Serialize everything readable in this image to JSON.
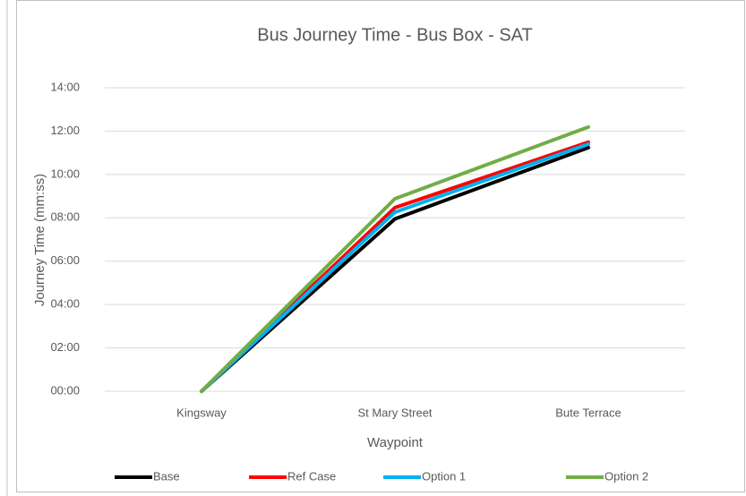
{
  "chart_data": {
    "type": "line",
    "title": "Bus Journey Time - Bus Box - SAT",
    "xlabel": "Waypoint",
    "ylabel": "Journey Time (mm:ss)",
    "categories": [
      "Kingsway",
      "St Mary Street",
      "Bute Terrace"
    ],
    "series": [
      {
        "name": "Base",
        "color": "#000000",
        "values": [
          0,
          7.95,
          11.24
        ]
      },
      {
        "name": "Ref Case",
        "color": "#ff0000",
        "values": [
          0,
          8.47,
          11.49
        ]
      },
      {
        "name": "Option 1",
        "color": "#00b0f0",
        "values": [
          0,
          8.26,
          11.4
        ]
      },
      {
        "name": "Option 2",
        "color": "#70ad47",
        "values": [
          0,
          8.88,
          12.19
        ]
      }
    ],
    "ylim": [
      0,
      14
    ],
    "yticks": [
      {
        "value": 0,
        "label": "00:00"
      },
      {
        "value": 2,
        "label": "02:00"
      },
      {
        "value": 4,
        "label": "04:00"
      },
      {
        "value": 6,
        "label": "06:00"
      },
      {
        "value": 8,
        "label": "08:00"
      },
      {
        "value": 10,
        "label": "10:00"
      },
      {
        "value": 12,
        "label": "12:00"
      },
      {
        "value": 14,
        "label": "14:00"
      }
    ],
    "grid": true,
    "legend": "bottom"
  }
}
